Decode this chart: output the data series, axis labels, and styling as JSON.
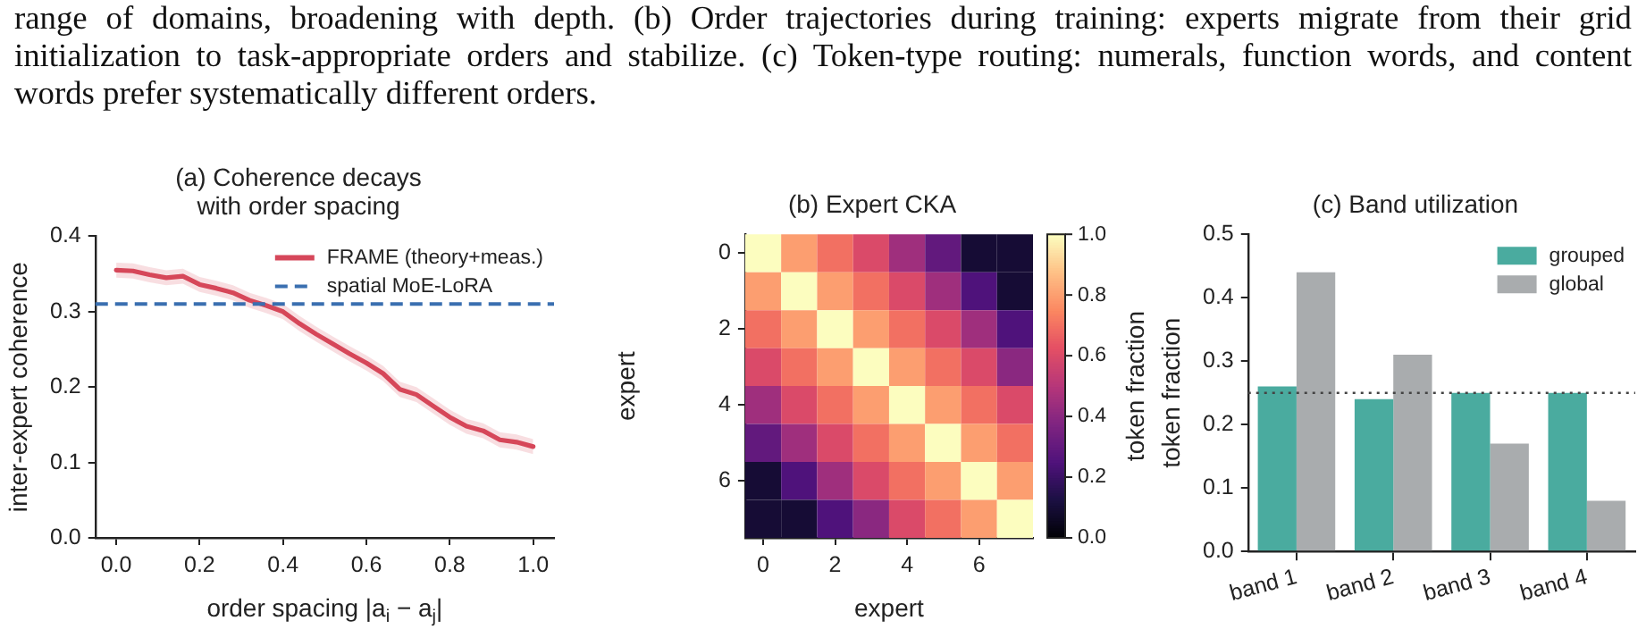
{
  "chart_data": [
    {
      "type": "other",
      "annotations": [
        "range of domains, broadening with depth. (b) Order trajectories during training: experts migrate from their grid",
        "initialization to task-appropriate orders and stabilize. (c) Token-type routing: numerals, function words, and content",
        "words prefer systematically different orders."
      ]
    },
    {
      "type": "line",
      "title": "(a) Coherence decays\nwith order spacing",
      "xlabel": "order spacing |a$_{i}$ − a$_{j}$|",
      "ylabel": "inter-expert coherence",
      "x": [
        0,
        0.04,
        0.08,
        0.12,
        0.16,
        0.2,
        0.24,
        0.28,
        0.32,
        0.36,
        0.4,
        0.44,
        0.48,
        0.52,
        0.56,
        0.6,
        0.64,
        0.68,
        0.72,
        0.76,
        0.8,
        0.84,
        0.88,
        0.92,
        0.96,
        1.0
      ],
      "series": [
        {
          "name": "FRAME (theory+meas.)",
          "color": "#d6475a",
          "values": [
            0.355,
            0.354,
            0.349,
            0.345,
            0.347,
            0.336,
            0.331,
            0.325,
            0.315,
            0.308,
            0.3,
            0.284,
            0.27,
            0.257,
            0.244,
            0.232,
            0.218,
            0.197,
            0.19,
            0.175,
            0.16,
            0.148,
            0.142,
            0.13,
            0.127,
            0.121
          ],
          "lower": [
            0.345,
            0.344,
            0.339,
            0.335,
            0.337,
            0.326,
            0.321,
            0.315,
            0.305,
            0.298,
            0.29,
            0.274,
            0.26,
            0.247,
            0.234,
            0.222,
            0.208,
            0.187,
            0.18,
            0.165,
            0.15,
            0.138,
            0.132,
            0.12,
            0.117,
            0.111
          ],
          "upper": [
            0.365,
            0.364,
            0.359,
            0.355,
            0.357,
            0.346,
            0.341,
            0.335,
            0.325,
            0.318,
            0.31,
            0.294,
            0.28,
            0.267,
            0.254,
            0.242,
            0.228,
            0.207,
            0.2,
            0.185,
            0.17,
            0.158,
            0.152,
            0.14,
            0.137,
            0.131
          ]
        }
      ],
      "ref_lines": [
        {
          "axis": "y",
          "value": 0.31,
          "label": "spatial MoE-LoRA",
          "color": "#3a6fb0",
          "line_style": "dashed"
        }
      ],
      "xlim": [
        -0.05,
        1.05
      ],
      "xticks": [
        {
          "value": 0,
          "label": "0.0"
        },
        0.2,
        0.4,
        0.6,
        0.8,
        {
          "value": 1,
          "label": "1.0"
        }
      ],
      "ylim": [
        0,
        0.4
      ],
      "yticks": [
        {
          "value": 0,
          "label": "0.0"
        },
        0.1,
        0.2,
        0.3,
        0.4
      ],
      "grid": false,
      "legend": "top right",
      "marker": "none",
      "line_style": "solid"
    },
    {
      "type": "heatmap",
      "title": "(b) Expert CKA",
      "xlabel": "expert",
      "ylabel": "expert",
      "clabel": "token fraction",
      "categories": [
        "0",
        null,
        "2",
        null,
        "4",
        null,
        "6",
        null
      ],
      "y_categories": [
        "0",
        null,
        "2",
        null,
        "4",
        null,
        "6",
        null
      ],
      "cells": [
        [
          1.0,
          0.8,
          0.7,
          0.6,
          0.45,
          0.3,
          0.1,
          0.1
        ],
        [
          0.8,
          1.0,
          0.8,
          0.7,
          0.6,
          0.45,
          0.25,
          0.1
        ],
        [
          0.7,
          0.8,
          1.0,
          0.8,
          0.7,
          0.6,
          0.45,
          0.25
        ],
        [
          0.6,
          0.7,
          0.8,
          1.0,
          0.8,
          0.7,
          0.6,
          0.4
        ],
        [
          0.45,
          0.6,
          0.7,
          0.8,
          1.0,
          0.8,
          0.7,
          0.6
        ],
        [
          0.3,
          0.45,
          0.6,
          0.7,
          0.8,
          1.0,
          0.8,
          0.7
        ],
        [
          0.1,
          0.25,
          0.45,
          0.6,
          0.7,
          0.8,
          1.0,
          0.8
        ],
        [
          0.1,
          0.1,
          0.25,
          0.4,
          0.6,
          0.7,
          0.8,
          1.0
        ]
      ],
      "clim": [
        0,
        1
      ],
      "cticks": [
        {
          "value": 0,
          "label": "0.0"
        },
        0.2,
        0.4,
        0.6,
        0.8,
        {
          "value": 1,
          "label": "1.0"
        }
      ]
    },
    {
      "type": "bar",
      "title": "(c) Band utilization",
      "ylabel": "token fraction",
      "categories": [
        "band 1",
        "band 2",
        "band 3",
        "band 4"
      ],
      "series": [
        {
          "name": "grouped",
          "color": "#4aab9f",
          "values": [
            0.26,
            0.24,
            0.25,
            0.25
          ]
        },
        {
          "name": "global",
          "color": "#a9acae",
          "values": [
            0.44,
            0.31,
            0.17,
            0.08
          ]
        }
      ],
      "ref_lines": [
        {
          "axis": "y",
          "value": 0.25,
          "color": "#444444",
          "line_style": "dotted"
        }
      ],
      "ylim": [
        0,
        0.5
      ],
      "yticks": [
        {
          "value": 0,
          "label": "0.0"
        },
        0.1,
        0.2,
        0.3,
        0.4,
        0.5
      ],
      "grid": false,
      "legend": "top right"
    }
  ]
}
